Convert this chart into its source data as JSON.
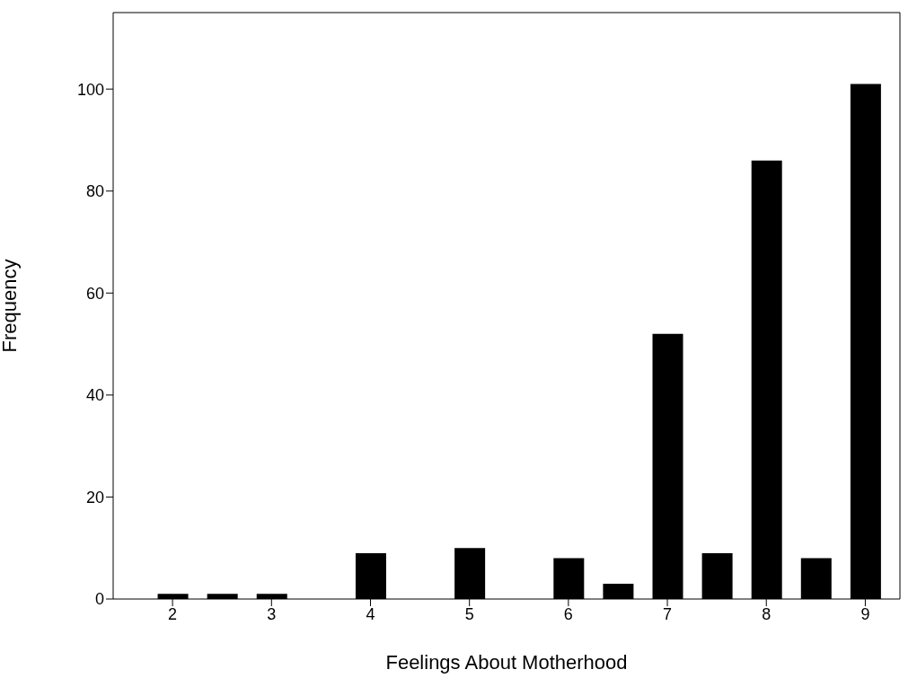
{
  "chart_data": {
    "type": "bar",
    "xlabel": "Feelings About Motherhood",
    "ylabel": "Frequency",
    "x": [
      2,
      2.5,
      3,
      4,
      5,
      6,
      6.5,
      7,
      7.5,
      8,
      8.5,
      9
    ],
    "values": [
      1,
      1,
      1,
      9,
      10,
      8,
      3,
      52,
      9,
      86,
      8,
      101
    ],
    "color": "#000000",
    "xlim": [
      1.4,
      9.35
    ],
    "xticks": [
      2,
      3,
      4,
      5,
      6,
      7,
      8,
      9
    ],
    "ylim": [
      0,
      115
    ],
    "yticks": [
      0,
      20,
      40,
      60,
      80,
      100
    ],
    "grid": false
  }
}
